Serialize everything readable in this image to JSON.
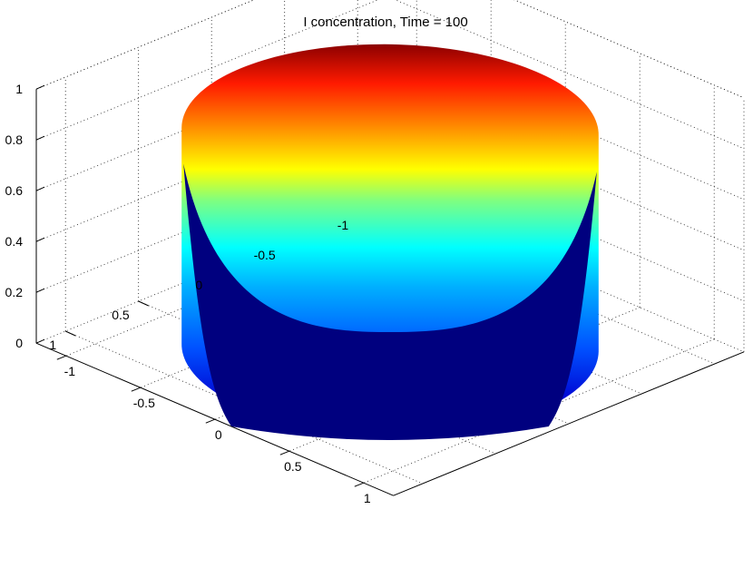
{
  "chart_data": {
    "type": "surface",
    "title": "I concentration, Time = 100",
    "xlabel": "",
    "ylabel": "",
    "zlabel": "",
    "xlim": [
      -1.2,
      1.2
    ],
    "ylim": [
      -1.2,
      1.2
    ],
    "zlim": [
      0,
      1
    ],
    "x_ticks": [
      -1,
      -0.5,
      0,
      0.5,
      1
    ],
    "x_tick_labels": [
      "-1",
      "-0.5",
      "0",
      "0.5",
      "1"
    ],
    "y_ticks": [
      -1,
      -0.5,
      0,
      0.5,
      1
    ],
    "y_tick_labels": [
      "-1",
      "-0.5",
      "0",
      "0.5",
      "1"
    ],
    "z_ticks": [
      0,
      0.2,
      0.4,
      0.6,
      0.8,
      1
    ],
    "z_tick_labels": [
      "0",
      "0.2",
      "0.4",
      "0.6",
      "0.8",
      "1"
    ],
    "grid": true,
    "colormap": "jet",
    "colormap_range": [
      0,
      0.85
    ],
    "surface": {
      "shape": "cylinder",
      "radius": 1,
      "base_height": 0,
      "top_height": 0.85,
      "inner_region": "dark blue near 0",
      "wall_color_gradient_from_bottom_to_top": [
        "#00007f",
        "#0000ff",
        "#00ffff",
        "#ffff00",
        "#ff0000",
        "#7f0000"
      ]
    }
  }
}
